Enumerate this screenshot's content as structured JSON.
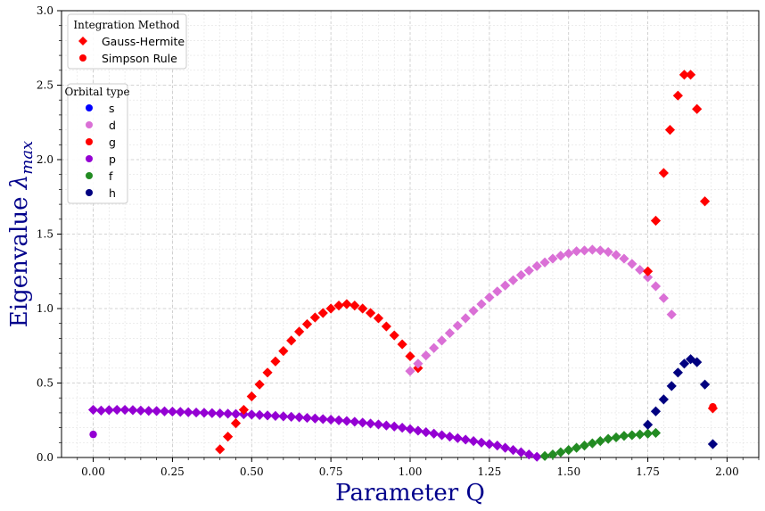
{
  "chart_data": {
    "type": "scatter",
    "title": "",
    "xlabel": "Parameter Q",
    "ylabel_main": "Eigenvalue ",
    "ylabel_symbol": "λ",
    "ylabel_sub": "max",
    "xlim": [
      -0.1,
      2.1
    ],
    "ylim": [
      0.0,
      3.0
    ],
    "xticks": [
      0.0,
      0.25,
      0.5,
      0.75,
      1.0,
      1.25,
      1.5,
      1.75,
      2.0
    ],
    "xtick_labels": [
      "0.00",
      "0.25",
      "0.50",
      "0.75",
      "1.00",
      "1.25",
      "1.50",
      "1.75",
      "2.00"
    ],
    "yticks": [
      0.0,
      0.5,
      1.0,
      1.5,
      2.0,
      2.5,
      3.0
    ],
    "ytick_labels": [
      "0.0",
      "0.5",
      "1.0",
      "1.5",
      "2.0",
      "2.5",
      "3.0"
    ],
    "grid": "on (major and minor, dashed)",
    "legend_method": {
      "title": "Integration Method",
      "placement": "top-left",
      "entries": [
        {
          "label": "Gauss-Hermite",
          "marker": "diamond",
          "color": "#ff0000"
        },
        {
          "label": "Simpson Rule",
          "marker": "circle",
          "color": "#ff0000"
        }
      ]
    },
    "legend_orbital": {
      "title": "Orbital type",
      "placement": "upper-left",
      "entries": [
        {
          "label": "s",
          "color": "#0000ff"
        },
        {
          "label": "d",
          "color": "#da70d6"
        },
        {
          "label": "g",
          "color": "#ff0000"
        },
        {
          "label": "p",
          "color": "#9400d3"
        },
        {
          "label": "f",
          "color": "#228b22"
        },
        {
          "label": "h",
          "color": "#000080"
        }
      ]
    },
    "series": [
      {
        "orbital": "p",
        "method": "Gauss-Hermite",
        "marker": "diamond",
        "color": "#9400d3",
        "points": [
          [
            0.0,
            0.32
          ],
          [
            0.025,
            0.315
          ],
          [
            0.05,
            0.318
          ],
          [
            0.075,
            0.32
          ],
          [
            0.1,
            0.32
          ],
          [
            0.125,
            0.318
          ],
          [
            0.15,
            0.315
          ],
          [
            0.175,
            0.313
          ],
          [
            0.2,
            0.312
          ],
          [
            0.225,
            0.31
          ],
          [
            0.25,
            0.308
          ],
          [
            0.275,
            0.306
          ],
          [
            0.3,
            0.304
          ],
          [
            0.325,
            0.302
          ],
          [
            0.35,
            0.3
          ],
          [
            0.375,
            0.298
          ],
          [
            0.4,
            0.296
          ],
          [
            0.425,
            0.294
          ],
          [
            0.45,
            0.292
          ],
          [
            0.475,
            0.29
          ],
          [
            0.5,
            0.288
          ],
          [
            0.525,
            0.285
          ],
          [
            0.55,
            0.282
          ],
          [
            0.575,
            0.279
          ],
          [
            0.6,
            0.276
          ],
          [
            0.625,
            0.273
          ],
          [
            0.65,
            0.27
          ],
          [
            0.675,
            0.266
          ],
          [
            0.7,
            0.262
          ],
          [
            0.725,
            0.258
          ],
          [
            0.75,
            0.254
          ],
          [
            0.775,
            0.25
          ],
          [
            0.8,
            0.245
          ],
          [
            0.825,
            0.24
          ],
          [
            0.85,
            0.234
          ],
          [
            0.875,
            0.228
          ],
          [
            0.9,
            0.222
          ],
          [
            0.925,
            0.215
          ],
          [
            0.95,
            0.208
          ],
          [
            0.975,
            0.2
          ],
          [
            1.0,
            0.19
          ],
          [
            1.025,
            0.18
          ],
          [
            1.05,
            0.17
          ],
          [
            1.075,
            0.16
          ],
          [
            1.1,
            0.15
          ],
          [
            1.125,
            0.14
          ],
          [
            1.15,
            0.13
          ],
          [
            1.175,
            0.12
          ],
          [
            1.2,
            0.11
          ],
          [
            1.225,
            0.1
          ],
          [
            1.25,
            0.09
          ],
          [
            1.275,
            0.08
          ],
          [
            1.3,
            0.065
          ],
          [
            1.325,
            0.05
          ],
          [
            1.35,
            0.035
          ],
          [
            1.375,
            0.02
          ],
          [
            1.4,
            0.005
          ]
        ]
      },
      {
        "orbital": "g",
        "method": "Gauss-Hermite",
        "marker": "diamond",
        "color": "#ff0000",
        "points": [
          [
            0.4,
            0.055
          ],
          [
            0.425,
            0.14
          ],
          [
            0.45,
            0.23
          ],
          [
            0.475,
            0.32
          ],
          [
            0.5,
            0.41
          ],
          [
            0.525,
            0.49
          ],
          [
            0.55,
            0.57
          ],
          [
            0.575,
            0.645
          ],
          [
            0.6,
            0.715
          ],
          [
            0.625,
            0.785
          ],
          [
            0.65,
            0.845
          ],
          [
            0.675,
            0.895
          ],
          [
            0.7,
            0.94
          ],
          [
            0.725,
            0.97
          ],
          [
            0.75,
            1.0
          ],
          [
            0.775,
            1.02
          ],
          [
            0.8,
            1.03
          ],
          [
            0.825,
            1.02
          ],
          [
            0.85,
            1.0
          ],
          [
            0.875,
            0.97
          ],
          [
            0.9,
            0.935
          ],
          [
            0.925,
            0.88
          ],
          [
            0.95,
            0.82
          ],
          [
            0.975,
            0.76
          ],
          [
            1.0,
            0.68
          ],
          [
            1.025,
            0.6
          ]
        ]
      },
      {
        "orbital": "d",
        "method": "Gauss-Hermite",
        "marker": "diamond",
        "color": "#da70d6",
        "points": [
          [
            1.0,
            0.58
          ],
          [
            1.025,
            0.63
          ],
          [
            1.05,
            0.685
          ],
          [
            1.075,
            0.735
          ],
          [
            1.1,
            0.785
          ],
          [
            1.125,
            0.835
          ],
          [
            1.15,
            0.885
          ],
          [
            1.175,
            0.935
          ],
          [
            1.2,
            0.985
          ],
          [
            1.225,
            1.03
          ],
          [
            1.25,
            1.075
          ],
          [
            1.275,
            1.115
          ],
          [
            1.3,
            1.155
          ],
          [
            1.325,
            1.19
          ],
          [
            1.35,
            1.225
          ],
          [
            1.375,
            1.255
          ],
          [
            1.4,
            1.285
          ],
          [
            1.425,
            1.31
          ],
          [
            1.45,
            1.335
          ],
          [
            1.475,
            1.355
          ],
          [
            1.5,
            1.37
          ],
          [
            1.525,
            1.385
          ],
          [
            1.55,
            1.39
          ],
          [
            1.575,
            1.395
          ],
          [
            1.6,
            1.39
          ],
          [
            1.625,
            1.38
          ],
          [
            1.65,
            1.36
          ],
          [
            1.675,
            1.335
          ],
          [
            1.7,
            1.3
          ],
          [
            1.725,
            1.26
          ],
          [
            1.75,
            1.21
          ],
          [
            1.775,
            1.15
          ],
          [
            1.8,
            1.07
          ],
          [
            1.825,
            0.96
          ]
        ]
      },
      {
        "orbital": "f",
        "method": "Gauss-Hermite",
        "marker": "diamond",
        "color": "#228b22",
        "points": [
          [
            1.425,
            0.01
          ],
          [
            1.45,
            0.02
          ],
          [
            1.475,
            0.035
          ],
          [
            1.5,
            0.05
          ],
          [
            1.525,
            0.065
          ],
          [
            1.55,
            0.08
          ],
          [
            1.575,
            0.095
          ],
          [
            1.6,
            0.11
          ],
          [
            1.625,
            0.125
          ],
          [
            1.65,
            0.135
          ],
          [
            1.675,
            0.145
          ],
          [
            1.7,
            0.15
          ],
          [
            1.725,
            0.155
          ],
          [
            1.75,
            0.16
          ],
          [
            1.775,
            0.165
          ]
        ]
      },
      {
        "orbital": "h",
        "method": "Gauss-Hermite",
        "marker": "diamond",
        "color": "#000080",
        "points": [
          [
            1.75,
            0.22
          ],
          [
            1.775,
            0.31
          ],
          [
            1.8,
            0.39
          ],
          [
            1.825,
            0.48
          ],
          [
            1.845,
            0.57
          ],
          [
            1.865,
            0.63
          ],
          [
            1.885,
            0.66
          ],
          [
            1.905,
            0.64
          ],
          [
            1.93,
            0.49
          ],
          [
            1.955,
            0.09
          ]
        ]
      },
      {
        "orbital": "g",
        "method": "Gauss-Hermite",
        "marker": "diamond",
        "color": "#ff0000",
        "points": [
          [
            1.75,
            1.25
          ],
          [
            1.775,
            1.59
          ],
          [
            1.8,
            1.91
          ],
          [
            1.82,
            2.2
          ],
          [
            1.845,
            2.43
          ],
          [
            1.865,
            2.57
          ],
          [
            1.885,
            2.57
          ],
          [
            1.905,
            2.34
          ],
          [
            1.93,
            1.72
          ],
          [
            1.955,
            0.33
          ]
        ]
      },
      {
        "orbital": "p",
        "method": "Simpson Rule",
        "marker": "circle",
        "color": "#9400d3",
        "points": [
          [
            0.0,
            0.155
          ]
        ]
      },
      {
        "orbital": "g",
        "method": "Simpson Rule",
        "marker": "circle",
        "color": "#ff0000",
        "points": [
          [
            1.955,
            0.34
          ]
        ]
      }
    ]
  }
}
